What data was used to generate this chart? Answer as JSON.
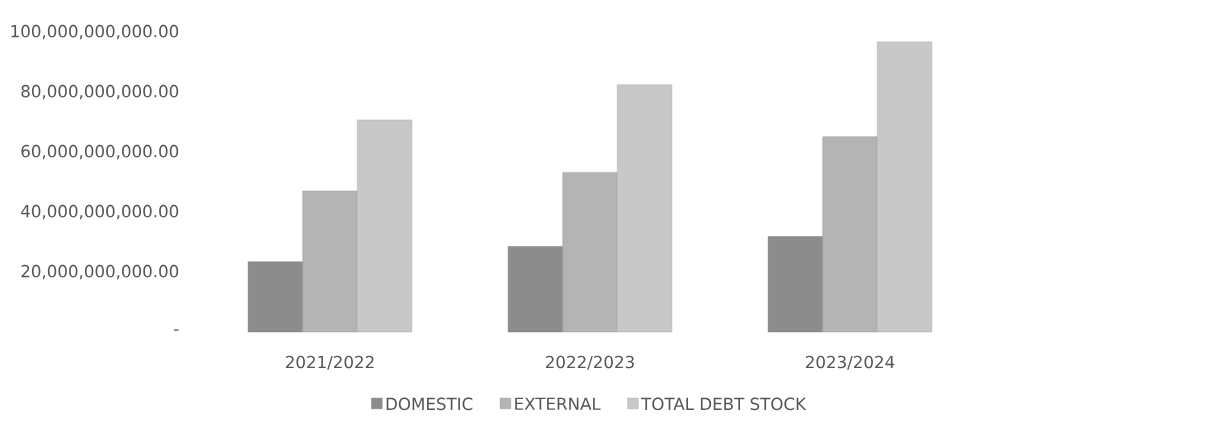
{
  "chart_data": {
    "type": "bar",
    "categories": [
      "2021/2022",
      "2022/2023",
      "2023/2024"
    ],
    "series": [
      {
        "name": "DOMESTIC",
        "color": "#8c8c8c",
        "values": [
          23400000000,
          28500000000,
          31800000000
        ]
      },
      {
        "name": "EXTERNAL",
        "color": "#b4b4b4",
        "values": [
          47000000000,
          53200000000,
          65100000000
        ]
      },
      {
        "name": "TOTAL DEBT STOCK",
        "color": "#c8c8c8",
        "values": [
          70700000000,
          82400000000,
          96700000000
        ]
      }
    ],
    "ylim": [
      0,
      100000000000
    ],
    "yticks": [
      {
        "value": 0,
        "label": "-"
      },
      {
        "value": 20000000000,
        "label": "20,000,000,000.00"
      },
      {
        "value": 40000000000,
        "label": "40,000,000,000.00"
      },
      {
        "value": 60000000000,
        "label": "60,000,000,000.00"
      },
      {
        "value": 80000000000,
        "label": "80,000,000,000.00"
      },
      {
        "value": 100000000000,
        "label": "100,000,000,000.00"
      }
    ],
    "legend": "bottom"
  }
}
